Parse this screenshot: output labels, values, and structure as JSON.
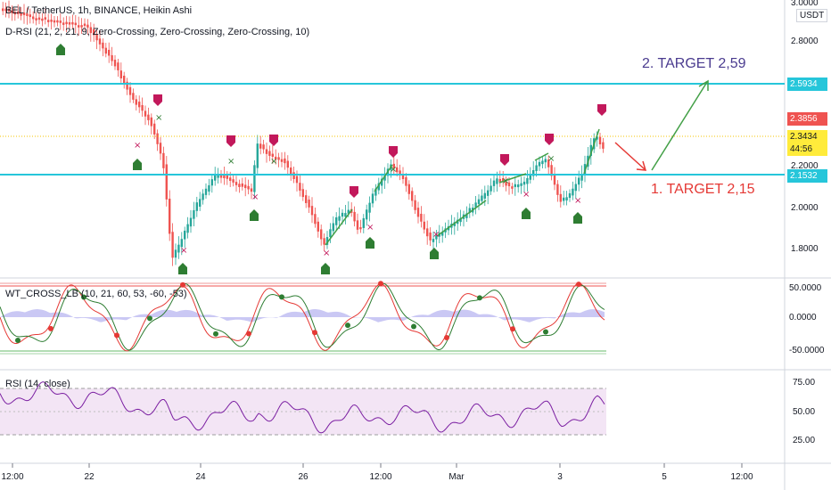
{
  "header": {
    "symbol_line": "BEL / TetherUS, 1h, BINANCE, Heikin Ashi",
    "indicator_line": "D-RSI (21, 2, 21, 9, Zero-Crossing, Zero-Crossing, Zero-Crossing, 10)"
  },
  "panes": {
    "wt_title": "WT_CROSS_LB (10, 21, 60, 53, -60, -53)",
    "rsi_title": "RSI (14, close)"
  },
  "price_axis": {
    "currency": "USDT",
    "labels": [
      "3.0000",
      "2.8000",
      "2.2000",
      "2.0000",
      "1.8000"
    ],
    "tags": [
      {
        "value": "2.5934",
        "color": "#26c6da"
      },
      {
        "value": "2.3856",
        "color": "#ef5350"
      },
      {
        "value": "2.3434",
        "color": "#ffeb3b"
      },
      {
        "value": "44:56",
        "color": "#ffeb3b"
      },
      {
        "value": "2.1532",
        "color": "#26c6da"
      }
    ]
  },
  "wt_axis": {
    "labels": [
      "50.0000",
      "0.0000",
      "-50.0000"
    ]
  },
  "rsi_axis": {
    "labels": [
      "75.00",
      "50.00",
      "25.00"
    ]
  },
  "time_axis": {
    "labels": [
      "12:00",
      "22",
      "24",
      "26",
      "12:00",
      "Mar",
      "3",
      "5",
      "12:00"
    ]
  },
  "annotations": {
    "target2": "2. TARGET 2,59",
    "target1": "1. TARGET 2,15"
  },
  "colors": {
    "up": "#26a69a",
    "down": "#ef5350",
    "cyan_line": "#26c6da",
    "purple_text": "#4a3b8f",
    "red_text": "#e53935",
    "green_arrow": "#43a047",
    "rsi_line": "#7b1fa2",
    "rsi_band": "#e1bee7",
    "signal_green": "#2e7d32",
    "signal_pink": "#c2185b"
  }
}
